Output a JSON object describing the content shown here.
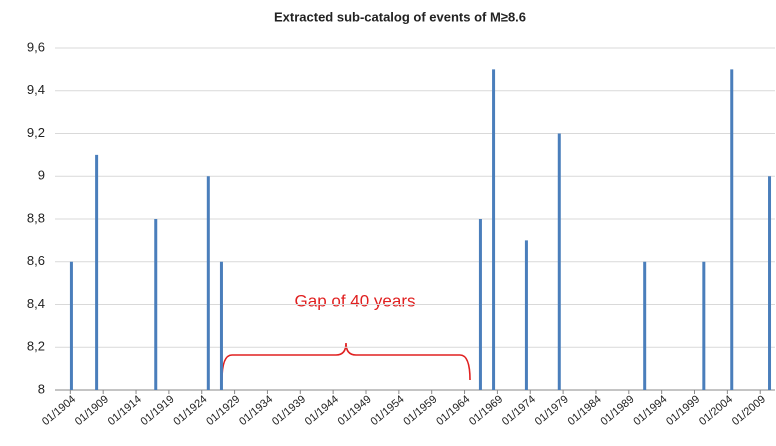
{
  "chart_data": {
    "type": "bar",
    "title": "Extracted sub-catalog of events of M≥8.6",
    "x": [
      "1904-03",
      "1908-01",
      "1917-01",
      "1925-01",
      "1927-01",
      "1966-06",
      "1968-06",
      "1973-06",
      "1978-06",
      "1991-06",
      "2000-06",
      "2004-09",
      "2010-06"
    ],
    "values": [
      8.6,
      9.1,
      8.8,
      9.0,
      8.6,
      8.8,
      9.5,
      8.7,
      9.2,
      8.6,
      8.6,
      9.5,
      9.0
    ],
    "color": "#4a7ebb",
    "xlim": [
      "1901-09",
      "2011-04"
    ],
    "xticks": [
      {
        "value": "1904-01",
        "label": "01/1904"
      },
      {
        "value": "1909-01",
        "label": "01/1909"
      },
      {
        "value": "1914-01",
        "label": "01/1914"
      },
      {
        "value": "1919-01",
        "label": "01/1919"
      },
      {
        "value": "1924-01",
        "label": "01/1924"
      },
      {
        "value": "1929-01",
        "label": "01/1929"
      },
      {
        "value": "1934-01",
        "label": "01/1934"
      },
      {
        "value": "1939-01",
        "label": "01/1939"
      },
      {
        "value": "1944-01",
        "label": "01/1944"
      },
      {
        "value": "1949-01",
        "label": "01/1949"
      },
      {
        "value": "1954-01",
        "label": "01/1954"
      },
      {
        "value": "1959-01",
        "label": "01/1959"
      },
      {
        "value": "1964-01",
        "label": "01/1964"
      },
      {
        "value": "1969-01",
        "label": "01/1969"
      },
      {
        "value": "1974-01",
        "label": "01/1974"
      },
      {
        "value": "1979-01",
        "label": "01/1979"
      },
      {
        "value": "1984-01",
        "label": "01/1984"
      },
      {
        "value": "1989-01",
        "label": "01/1989"
      },
      {
        "value": "1994-01",
        "label": "01/1994"
      },
      {
        "value": "1999-01",
        "label": "01/1999"
      },
      {
        "value": "2004-01",
        "label": "01/2004"
      },
      {
        "value": "2009-01",
        "label": "01/2009"
      }
    ],
    "ylim": [
      8,
      9.6
    ],
    "yticks": [
      8,
      {
        "value": 8.2,
        "label": "8,2"
      },
      {
        "value": 8.4,
        "label": "8,4"
      },
      {
        "value": 8.6,
        "label": "8,6"
      },
      {
        "value": 8.8,
        "label": "8,8"
      },
      9,
      {
        "value": 9.2,
        "label": "9,2"
      },
      {
        "value": 9.4,
        "label": "9,4"
      },
      {
        "value": 9.6,
        "label": "9,6"
      }
    ],
    "grid": true,
    "annotation": "Gap of 40 years"
  }
}
